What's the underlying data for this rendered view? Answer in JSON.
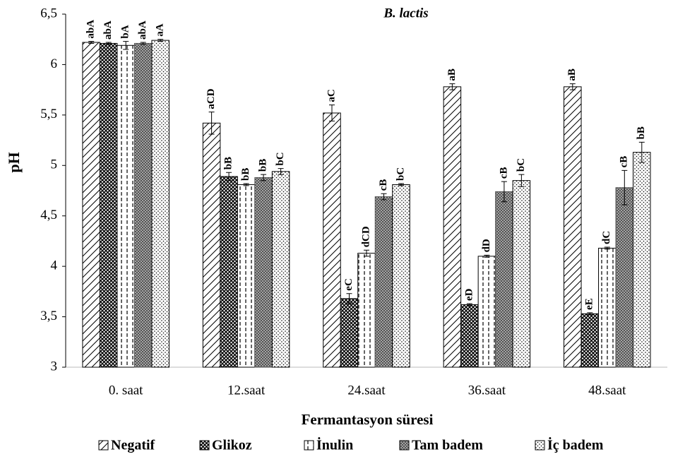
{
  "chart_data": {
    "type": "bar",
    "title": "B. lactis",
    "y_label": "pH",
    "x_label": "Fermantasyon süresi",
    "categories": [
      "0. saat",
      "12.saat",
      "24.saat",
      "36.saat",
      "48.saat"
    ],
    "ylim": [
      3,
      6.5
    ],
    "yticks": [
      3,
      {
        "value": 3.5,
        "label": "3,5"
      },
      4,
      {
        "value": 4.5,
        "label": "4,5"
      },
      5,
      {
        "value": 5.5,
        "label": "5,5"
      },
      6,
      {
        "value": 6.5,
        "label": "6,5"
      }
    ],
    "legend": "bottom",
    "series": [
      {
        "name": "Negatif",
        "color": "#000000",
        "pattern": "diagonal",
        "values": [
          6.22,
          5.42,
          5.52,
          5.78,
          5.78
        ],
        "errors": [
          0.01,
          0.11,
          0.08,
          0.03,
          0.03
        ],
        "labels": [
          "abA",
          "aCD",
          "aC",
          "aB",
          "aB"
        ]
      },
      {
        "name": "Glikoz",
        "color": "#000000",
        "pattern": "crosshatch",
        "values": [
          6.21,
          4.89,
          3.68,
          3.62,
          3.53
        ],
        "errors": [
          0.01,
          0.04,
          0.05,
          0.01,
          0.01
        ],
        "labels": [
          "abA",
          "bB",
          "eC",
          "eD",
          "eE"
        ]
      },
      {
        "name": "İnulin",
        "color": "#000000",
        "pattern": "dashed",
        "values": [
          6.19,
          4.81,
          4.13,
          4.1,
          4.18
        ],
        "errors": [
          0.04,
          0.01,
          0.03,
          0.01,
          0.01
        ],
        "labels": [
          "bA",
          "bB",
          "dCD",
          "dD",
          "dC"
        ]
      },
      {
        "name": "Tam badem",
        "color": "#555555",
        "pattern": "grid",
        "values": [
          6.21,
          4.88,
          4.69,
          4.74,
          4.78
        ],
        "errors": [
          0.01,
          0.03,
          0.03,
          0.1,
          0.17
        ],
        "labels": [
          "abA",
          "bB",
          "cB",
          "cB",
          "cB"
        ]
      },
      {
        "name": "İç badem",
        "color": "#000000",
        "pattern": "dots",
        "values": [
          6.24,
          4.94,
          4.81,
          4.85,
          5.13
        ],
        "errors": [
          0.01,
          0.03,
          0.01,
          0.06,
          0.1
        ],
        "labels": [
          "aA",
          "bC",
          "bC",
          "bC",
          "bB"
        ]
      }
    ]
  }
}
